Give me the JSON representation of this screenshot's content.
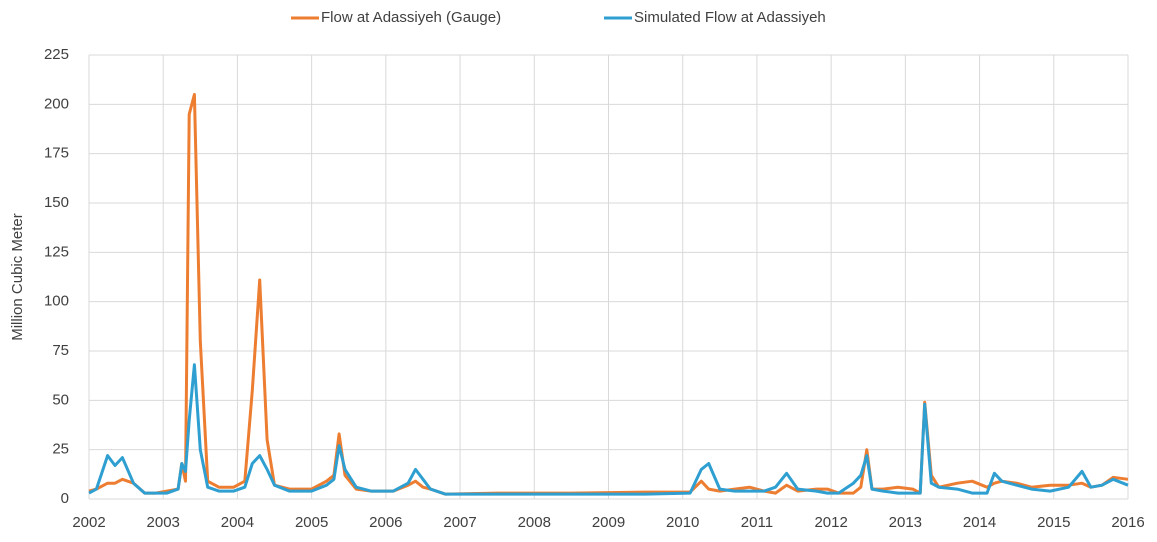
{
  "chart_data": {
    "type": "line",
    "y_label": "Million Cubic Meter",
    "x": [
      2002,
      2002.1,
      2002.25,
      2002.35,
      2002.45,
      2002.6,
      2002.75,
      2002.9,
      2003.05,
      2003.2,
      2003.25,
      2003.3,
      2003.35,
      2003.42,
      2003.5,
      2003.6,
      2003.75,
      2003.95,
      2004.1,
      2004.2,
      2004.3,
      2004.4,
      2004.5,
      2004.7,
      2005,
      2005.2,
      2005.3,
      2005.37,
      2005.45,
      2005.6,
      2005.8,
      2006.1,
      2006.3,
      2006.4,
      2006.5,
      2006.6,
      2006.8,
      2007.5,
      2008.5,
      2009.5,
      2010.1,
      2010.25,
      2010.35,
      2010.5,
      2010.7,
      2010.9,
      2011.1,
      2011.25,
      2011.4,
      2011.55,
      2011.8,
      2011.95,
      2012.1,
      2012.3,
      2012.4,
      2012.48,
      2012.55,
      2012.7,
      2012.9,
      2013.1,
      2013.2,
      2013.26,
      2013.35,
      2013.45,
      2013.7,
      2013.9,
      2014.1,
      2014.2,
      2014.3,
      2014.5,
      2014.7,
      2014.95,
      2015.2,
      2015.38,
      2015.5,
      2015.65,
      2015.8,
      2016
    ],
    "series": [
      {
        "name": "Flow at Adassiyeh (Gauge)",
        "color": "#ed7d31",
        "values": [
          4,
          5,
          8,
          8,
          10,
          8,
          3,
          3,
          4,
          5,
          18,
          9,
          195,
          205,
          80,
          9,
          6,
          6,
          9,
          55,
          111,
          30,
          7,
          5,
          5,
          9,
          12,
          33,
          12,
          5,
          4,
          4,
          7,
          9,
          6,
          5,
          2.5,
          3,
          3,
          3.5,
          3.5,
          9,
          5,
          4,
          5,
          6,
          4,
          3,
          7,
          4,
          5,
          5,
          3,
          3,
          6,
          25,
          5,
          5,
          6,
          5,
          3,
          49,
          12,
          6,
          8,
          9,
          6,
          8,
          9,
          8,
          6,
          7,
          7,
          8,
          6,
          7,
          11,
          10
        ]
      },
      {
        "name": "Simulated Flow at Adassiyeh",
        "color": "#2e9fd0",
        "values": [
          3,
          5,
          22,
          17,
          21,
          8,
          3,
          3,
          3,
          5,
          18,
          14,
          40,
          68,
          25,
          6,
          4,
          4,
          6,
          18,
          22,
          15,
          7,
          4,
          4,
          7,
          10,
          27,
          15,
          6,
          4,
          4,
          8,
          15,
          10,
          5,
          2.5,
          2.5,
          2.5,
          2.5,
          3,
          15,
          18,
          5,
          4,
          4,
          4,
          6,
          13,
          5,
          4,
          3,
          3,
          8,
          12,
          22,
          5,
          4,
          3,
          3,
          3,
          48,
          8,
          6,
          5,
          3,
          3,
          13,
          9,
          7,
          5,
          4,
          6,
          14,
          6,
          7,
          10,
          7
        ]
      }
    ],
    "xlim": [
      2002,
      2016
    ],
    "xticks": [
      2002,
      2003,
      2004,
      2005,
      2006,
      2007,
      2008,
      2009,
      2010,
      2011,
      2012,
      2013,
      2014,
      2015,
      2016
    ],
    "ylim": [
      0,
      225
    ],
    "yticks": [
      0,
      25,
      50,
      75,
      100,
      125,
      150,
      175,
      200,
      225
    ],
    "grid": true,
    "legend": "top"
  }
}
